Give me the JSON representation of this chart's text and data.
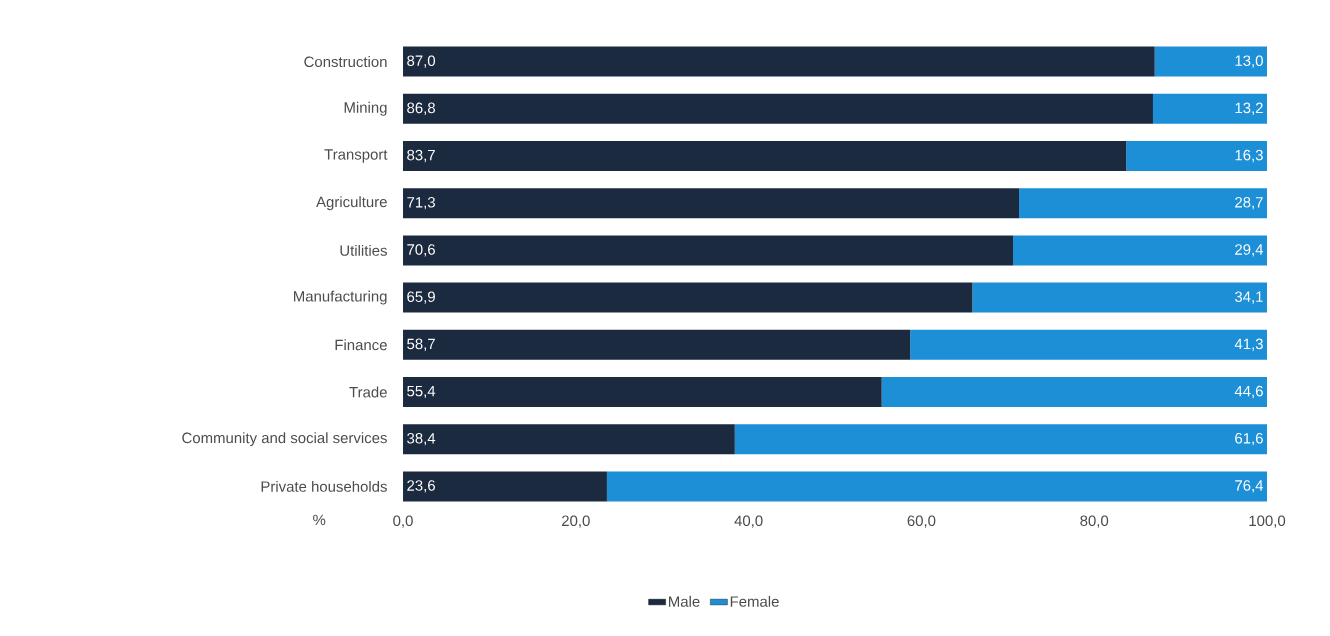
{
  "chart_data": {
    "type": "bar",
    "orientation": "horizontal",
    "stacked": true,
    "xlabel": "%",
    "categories": [
      "Construction",
      "Mining",
      "Transport",
      "Agriculture",
      "Utilities",
      "Manufacturing",
      "Finance",
      "Trade",
      "Community and social services",
      "Private households"
    ],
    "series": [
      {
        "name": "Male",
        "color": "#1c2a40",
        "values": [
          87.0,
          86.8,
          83.7,
          71.3,
          70.6,
          65.9,
          58.7,
          55.4,
          38.4,
          23.6
        ],
        "value_labels": [
          "87,0",
          "86,8",
          "83,7",
          "71,3",
          "70,6",
          "65,9",
          "58,7",
          "55,4",
          "38,4",
          "23,6"
        ]
      },
      {
        "name": "Female",
        "color": "#1d8fd6",
        "values": [
          13.0,
          13.2,
          16.3,
          28.7,
          29.4,
          34.1,
          41.3,
          44.6,
          61.6,
          76.4
        ],
        "value_labels": [
          "13,0",
          "13,2",
          "16,3",
          "28,7",
          "29,4",
          "34,1",
          "41,3",
          "44,6",
          "61,6",
          "76,4"
        ]
      }
    ],
    "xlim": [
      0,
      100
    ],
    "xticks": [
      {
        "value": 0,
        "label": "0,0"
      },
      {
        "value": 20,
        "label": "20,0"
      },
      {
        "value": 40,
        "label": "40,0"
      },
      {
        "value": 60,
        "label": "60,0"
      },
      {
        "value": 80,
        "label": "80,0"
      },
      {
        "value": 100,
        "label": "100,0"
      }
    ],
    "grid": false,
    "legend": "bottom"
  }
}
